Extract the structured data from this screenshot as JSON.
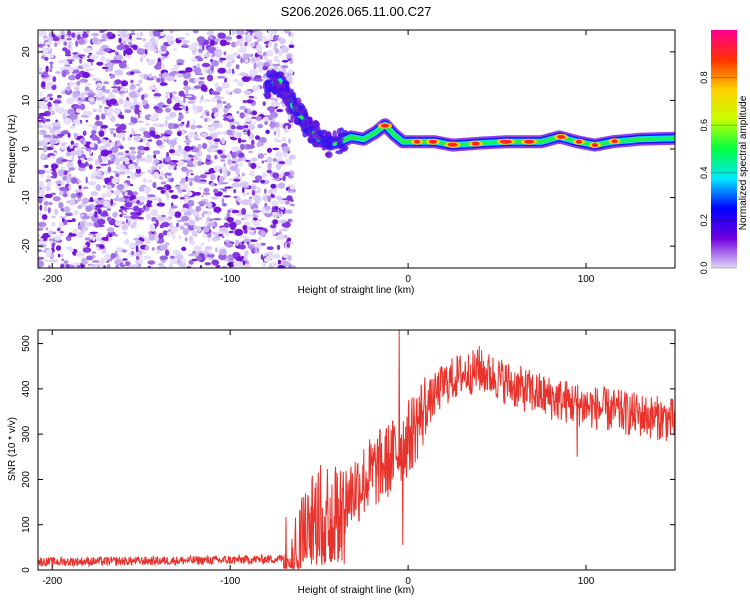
{
  "figure_title": "S206.2026.065.11.00.C27",
  "colors": {
    "snr_line": "#e8322b",
    "spec_noise": "#8a2be2",
    "axis": "#000000",
    "background": "#ffffff"
  },
  "chart_data": [
    {
      "type": "heatmap",
      "name": "spectrogram",
      "title": "S206.2026.065.11.00.C27",
      "xlabel": "Height of straight line (km)",
      "ylabel": "Frequency (Hz)",
      "xlim": [
        -208,
        150
      ],
      "ylim": [
        -24.5,
        24.5
      ],
      "x_ticks": [
        -200,
        -100,
        0,
        100
      ],
      "x_tick_labels": [
        "-200",
        "-100",
        "0",
        "100"
      ],
      "y_ticks": [
        -20,
        -10,
        0,
        10,
        20
      ],
      "y_tick_labels": [
        "-20",
        "-10",
        "0",
        "10",
        "20"
      ],
      "noise_region_x": [
        -208,
        -70
      ],
      "ridge": [
        {
          "x": -78,
          "y": 13
        },
        {
          "x": -72,
          "y": 14
        },
        {
          "x": -68,
          "y": 11
        },
        {
          "x": -63,
          "y": 8
        },
        {
          "x": -57,
          "y": 5
        },
        {
          "x": -50,
          "y": 2
        },
        {
          "x": -44,
          "y": 1
        },
        {
          "x": -38,
          "y": 1.5
        },
        {
          "x": -32,
          "y": 2.5
        },
        {
          "x": -25,
          "y": 2
        },
        {
          "x": -18,
          "y": 3.5
        },
        {
          "x": -13,
          "y": 5
        },
        {
          "x": -8,
          "y": 3
        },
        {
          "x": -3,
          "y": 1.5
        },
        {
          "x": 5,
          "y": 1.5
        },
        {
          "x": 15,
          "y": 1.5
        },
        {
          "x": 25,
          "y": 0.8
        },
        {
          "x": 40,
          "y": 1.2
        },
        {
          "x": 55,
          "y": 1.5
        },
        {
          "x": 75,
          "y": 1.5
        },
        {
          "x": 85,
          "y": 2.5
        },
        {
          "x": 95,
          "y": 1.5
        },
        {
          "x": 105,
          "y": 0.8
        },
        {
          "x": 115,
          "y": 1.5
        },
        {
          "x": 130,
          "y": 2
        },
        {
          "x": 150,
          "y": 2.2
        }
      ]
    },
    {
      "type": "colorbar",
      "name": "spectral-amplitude-scale",
      "label": "Normalized spectral amplitude",
      "range": [
        0,
        1
      ],
      "ticks": [
        0,
        0.2,
        0.4,
        0.6,
        0.8
      ],
      "tick_labels": [
        "0.0",
        "0.2",
        "0.4",
        "0.6",
        "0.8"
      ],
      "colormap": [
        "#e0d8f8",
        "#7000e0",
        "#0000ff",
        "#00e8ff",
        "#00ff40",
        "#c8ff00",
        "#ffd000",
        "#ff3000",
        "#ff0090"
      ]
    },
    {
      "type": "line",
      "name": "snr",
      "xlabel": "Height of straight line (km)",
      "ylabel": "SNR (10 * v/v)",
      "xlim": [
        -208,
        150
      ],
      "ylim": [
        0,
        530
      ],
      "x_ticks": [
        -200,
        -100,
        0,
        100
      ],
      "x_tick_labels": [
        "-200",
        "-100",
        "0",
        "100"
      ],
      "y_ticks": [
        0,
        100,
        200,
        300,
        400,
        500
      ],
      "y_tick_labels": [
        "0",
        "100",
        "200",
        "300",
        "400",
        "500"
      ],
      "envelope": [
        {
          "x": -208,
          "y": 18
        },
        {
          "x": -150,
          "y": 20
        },
        {
          "x": -100,
          "y": 22
        },
        {
          "x": -70,
          "y": 25
        },
        {
          "x": -62,
          "y": 55
        },
        {
          "x": -55,
          "y": 110
        },
        {
          "x": -48,
          "y": 140
        },
        {
          "x": -40,
          "y": 150
        },
        {
          "x": -35,
          "y": 155
        },
        {
          "x": -30,
          "y": 180
        },
        {
          "x": -20,
          "y": 215
        },
        {
          "x": -10,
          "y": 245
        },
        {
          "x": 0,
          "y": 290
        },
        {
          "x": 10,
          "y": 360
        },
        {
          "x": 20,
          "y": 410
        },
        {
          "x": 30,
          "y": 432
        },
        {
          "x": 40,
          "y": 440
        },
        {
          "x": 50,
          "y": 425
        },
        {
          "x": 60,
          "y": 405
        },
        {
          "x": 80,
          "y": 380
        },
        {
          "x": 100,
          "y": 362
        },
        {
          "x": 120,
          "y": 348
        },
        {
          "x": 150,
          "y": 330
        }
      ],
      "notable_points": [
        {
          "x": -5,
          "y": 530
        },
        {
          "x": -3,
          "y": 55
        },
        {
          "x": 40,
          "y": 495
        },
        {
          "x": 95,
          "y": 250
        }
      ]
    }
  ]
}
